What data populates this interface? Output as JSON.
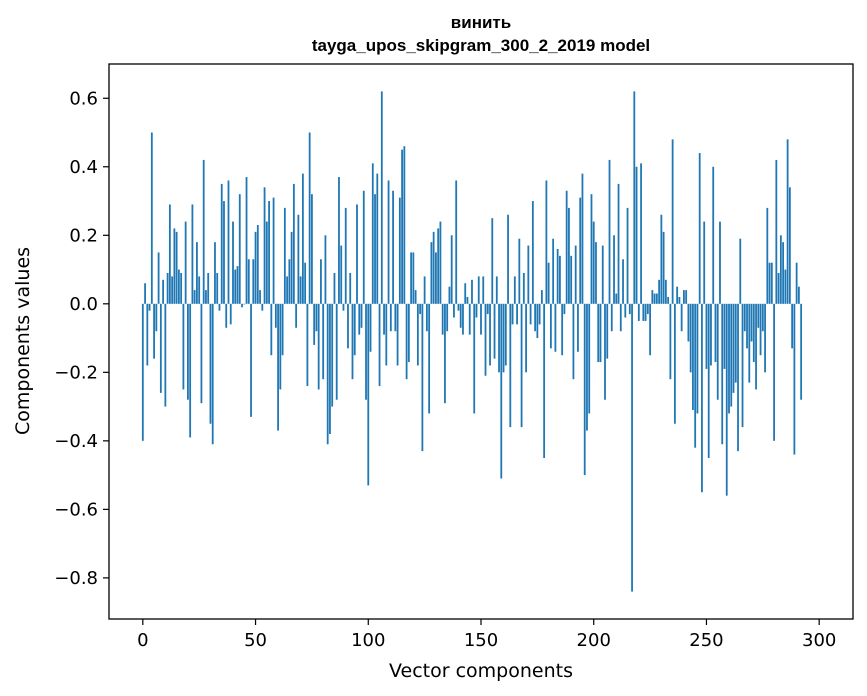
{
  "chart_data": {
    "type": "bar",
    "title": "винить",
    "subtitle": "tayga_upos_skipgram_300_2_2019 model",
    "xlabel": "Vector components",
    "ylabel": "Components values",
    "xlim": [
      -15,
      315
    ],
    "ylim": [
      -0.92,
      0.7
    ],
    "x_ticks": [
      0,
      50,
      100,
      150,
      200,
      250,
      300
    ],
    "x_tick_labels": [
      "0",
      "50",
      "100",
      "150",
      "200",
      "250",
      "300"
    ],
    "y_ticks": [
      -0.8,
      -0.6,
      -0.4,
      -0.2,
      0.0,
      0.2,
      0.4,
      0.6
    ],
    "y_tick_labels": [
      "−0.8",
      "−0.6",
      "−0.4",
      "−0.2",
      "0.0",
      "0.2",
      "0.4",
      "0.6"
    ],
    "bar_width": 0.8,
    "series": [
      {
        "name": "components",
        "color": "#1f77b4",
        "x_start": 0,
        "values": [
          -0.4,
          0.06,
          -0.18,
          -0.02,
          0.5,
          -0.16,
          -0.08,
          0.15,
          -0.26,
          0.07,
          -0.3,
          0.09,
          0.29,
          0.08,
          0.22,
          0.21,
          0.1,
          0.09,
          -0.25,
          0.24,
          -0.28,
          -0.39,
          0.29,
          0.04,
          0.18,
          0.08,
          -0.29,
          0.42,
          0.04,
          0.09,
          -0.35,
          -0.41,
          0.18,
          0.09,
          -0.02,
          0.35,
          0.3,
          -0.07,
          0.36,
          -0.06,
          0.24,
          0.1,
          0.11,
          0.32,
          -0.01,
          0.0,
          0.37,
          0.13,
          -0.33,
          0.13,
          0.21,
          0.23,
          0.04,
          -0.02,
          0.34,
          0.24,
          0.3,
          -0.15,
          0.31,
          -0.07,
          -0.37,
          -0.25,
          -0.15,
          0.28,
          0.08,
          0.13,
          0.21,
          0.35,
          -0.07,
          0.26,
          0.08,
          0.38,
          0.12,
          -0.24,
          0.5,
          0.32,
          -0.12,
          -0.08,
          -0.25,
          0.13,
          -0.22,
          0.2,
          -0.41,
          -0.38,
          -0.3,
          0.09,
          -0.28,
          0.37,
          0.17,
          -0.02,
          0.28,
          -0.13,
          0.09,
          -0.22,
          -0.15,
          0.29,
          -0.09,
          -0.07,
          0.33,
          -0.28,
          -0.53,
          -0.14,
          0.41,
          0.32,
          0.38,
          -0.24,
          0.62,
          -0.09,
          -0.18,
          0.36,
          -0.08,
          0.33,
          -0.08,
          -0.18,
          0.31,
          0.45,
          0.46,
          -0.22,
          -0.17,
          0.15,
          0.15,
          0.04,
          -0.18,
          -0.03,
          -0.43,
          0.08,
          -0.08,
          -0.32,
          0.18,
          0.21,
          0.15,
          0.22,
          0.24,
          -0.09,
          -0.29,
          -0.08,
          0.05,
          0.2,
          -0.04,
          0.36,
          -0.02,
          -0.07,
          -0.09,
          0.06,
          0.02,
          -0.09,
          0.07,
          -0.32,
          -0.04,
          0.08,
          -0.09,
          0.08,
          -0.21,
          -0.03,
          -0.18,
          0.25,
          -0.16,
          0.08,
          -0.2,
          -0.51,
          -0.2,
          -0.18,
          0.26,
          -0.36,
          -0.06,
          0.08,
          -0.06,
          0.19,
          -0.36,
          0.09,
          -0.2,
          0.17,
          -0.06,
          0.3,
          -0.08,
          -0.1,
          -0.06,
          0.04,
          -0.45,
          0.36,
          0.12,
          -0.13,
          0.19,
          -0.14,
          0.16,
          0.14,
          -0.15,
          -0.03,
          0.33,
          0.28,
          0.14,
          -0.22,
          0.17,
          -0.14,
          0.31,
          0.38,
          -0.5,
          -0.37,
          -0.32,
          0.32,
          0.24,
          0.18,
          -0.17,
          -0.17,
          0.17,
          -0.28,
          -0.16,
          0.42,
          -0.08,
          0.2,
          0.03,
          0.35,
          -0.08,
          0.13,
          -0.04,
          0.28,
          -0.03,
          -0.84,
          0.62,
          0.4,
          -0.05,
          0.41,
          -0.05,
          -0.05,
          -0.03,
          -0.15,
          0.04,
          0.03,
          0.03,
          0.07,
          0.26,
          0.21,
          0.07,
          0.02,
          -0.22,
          0.48,
          -0.35,
          0.05,
          0.02,
          -0.08,
          0.04,
          0.04,
          -0.11,
          -0.2,
          -0.31,
          -0.42,
          -0.32,
          0.44,
          -0.55,
          0.24,
          -0.19,
          -0.45,
          -0.18,
          0.4,
          -0.17,
          -0.28,
          0.24,
          -0.41,
          -0.19,
          -0.56,
          -0.32,
          -0.3,
          -0.26,
          -0.23,
          -0.43,
          0.19,
          -0.36,
          -0.08,
          -0.13,
          -0.23,
          -0.11,
          -0.17,
          -0.25,
          -0.07,
          -0.15,
          -0.08,
          -0.2,
          0.28,
          0.12,
          0.12,
          -0.4,
          0.42,
          0.09,
          0.2,
          0.18,
          0.1,
          0.48,
          0.34,
          -0.13,
          -0.44,
          0.12,
          0.05,
          -0.28
        ]
      }
    ]
  }
}
